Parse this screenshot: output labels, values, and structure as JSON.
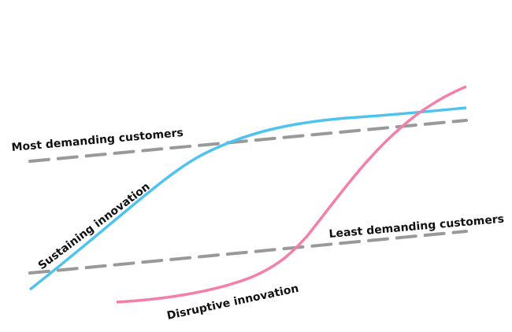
{
  "labels": {
    "most_demanding": "Most demanding customers",
    "least_demanding": "Least demanding customers",
    "sustaining": "Sustaining innovation",
    "disruptive": "Disruptive innovation"
  },
  "colors": {
    "sustaining": "#4fc3f0",
    "disruptive": "#f47fab",
    "customer_lines": "#999999"
  }
}
